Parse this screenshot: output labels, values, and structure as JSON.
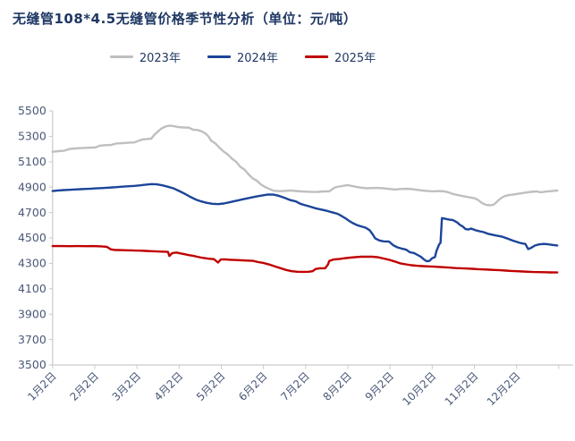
{
  "chart_data": {
    "type": "line",
    "title": "无缝管108*4.5无缝管价格季节性分析（单位：元/吨）",
    "unit": "元/吨",
    "legend_position": "top",
    "grid": false,
    "background": "#ffffff",
    "title_color": "#1f3864",
    "axis_color": "#c9c9c9",
    "tick_label_color": "#4a5878",
    "ylim": [
      3500,
      5500
    ],
    "ytick_step": 200,
    "y_tick_labels": [
      "3500",
      "3700",
      "3900",
      "4100",
      "4300",
      "4500",
      "4700",
      "4900",
      "5100",
      "5300",
      "5500"
    ],
    "x_tick_labels": [
      "1月2日",
      "2月2日",
      "3月2日",
      "4月2日",
      "5月2日",
      "6月2日",
      "7月2日",
      "8月2日",
      "9月2日",
      "10月2日",
      "11月2日",
      "12月2日"
    ],
    "x_axis_type": "day-of-year",
    "series": [
      {
        "name": "2023年",
        "color": "#bfbfbf",
        "points": [
          [
            2,
            5178
          ],
          [
            6,
            5183
          ],
          [
            10,
            5186
          ],
          [
            14,
            5200
          ],
          [
            18,
            5204
          ],
          [
            22,
            5207
          ],
          [
            26,
            5209
          ],
          [
            30,
            5211
          ],
          [
            33,
            5213
          ],
          [
            36,
            5227
          ],
          [
            40,
            5230
          ],
          [
            44,
            5232
          ],
          [
            48,
            5244
          ],
          [
            52,
            5246
          ],
          [
            56,
            5249
          ],
          [
            61,
            5252
          ],
          [
            64,
            5266
          ],
          [
            67,
            5276
          ],
          [
            70,
            5279
          ],
          [
            73,
            5282
          ],
          [
            75,
            5310
          ],
          [
            78,
            5340
          ],
          [
            80,
            5360
          ],
          [
            83,
            5377
          ],
          [
            86,
            5384
          ],
          [
            89,
            5381
          ],
          [
            92,
            5373
          ],
          [
            96,
            5370
          ],
          [
            100,
            5368
          ],
          [
            103,
            5352
          ],
          [
            106,
            5350
          ],
          [
            109,
            5340
          ],
          [
            112,
            5322
          ],
          [
            114,
            5300
          ],
          [
            116,
            5266
          ],
          [
            119,
            5245
          ],
          [
            122,
            5210
          ],
          [
            125,
            5180
          ],
          [
            128,
            5158
          ],
          [
            131,
            5124
          ],
          [
            134,
            5100
          ],
          [
            137,
            5060
          ],
          [
            140,
            5038
          ],
          [
            143,
            5000
          ],
          [
            146,
            4968
          ],
          [
            149,
            4950
          ],
          [
            152,
            4920
          ],
          [
            155,
            4900
          ],
          [
            158,
            4885
          ],
          [
            161,
            4872
          ],
          [
            165,
            4868
          ],
          [
            169,
            4870
          ],
          [
            173,
            4874
          ],
          [
            177,
            4870
          ],
          [
            181,
            4866
          ],
          [
            185,
            4864
          ],
          [
            189,
            4862
          ],
          [
            193,
            4863
          ],
          [
            197,
            4866
          ],
          [
            201,
            4867
          ],
          [
            205,
            4898
          ],
          [
            208,
            4905
          ],
          [
            211,
            4910
          ],
          [
            214,
            4916
          ],
          [
            217,
            4910
          ],
          [
            220,
            4903
          ],
          [
            224,
            4896
          ],
          [
            228,
            4891
          ],
          [
            232,
            4893
          ],
          [
            236,
            4894
          ],
          [
            240,
            4891
          ],
          [
            244,
            4886
          ],
          [
            248,
            4882
          ],
          [
            252,
            4885
          ],
          [
            256,
            4887
          ],
          [
            260,
            4885
          ],
          [
            264,
            4879
          ],
          [
            268,
            4873
          ],
          [
            272,
            4869
          ],
          [
            276,
            4867
          ],
          [
            280,
            4869
          ],
          [
            284,
            4866
          ],
          [
            287,
            4858
          ],
          [
            290,
            4846
          ],
          [
            293,
            4839
          ],
          [
            296,
            4832
          ],
          [
            299,
            4825
          ],
          [
            302,
            4819
          ],
          [
            305,
            4814
          ],
          [
            308,
            4799
          ],
          [
            310,
            4782
          ],
          [
            312,
            4768
          ],
          [
            314,
            4760
          ],
          [
            317,
            4757
          ],
          [
            319,
            4761
          ],
          [
            321,
            4779
          ],
          [
            323,
            4799
          ],
          [
            325,
            4817
          ],
          [
            327,
            4829
          ],
          [
            330,
            4837
          ],
          [
            334,
            4843
          ],
          [
            338,
            4850
          ],
          [
            342,
            4857
          ],
          [
            346,
            4863
          ],
          [
            350,
            4866
          ],
          [
            353,
            4860
          ],
          [
            356,
            4864
          ],
          [
            360,
            4868
          ],
          [
            365,
            4873
          ]
        ]
      },
      {
        "name": "2024年",
        "color": "#1c4499",
        "points": [
          [
            2,
            4869
          ],
          [
            6,
            4874
          ],
          [
            10,
            4877
          ],
          [
            14,
            4879
          ],
          [
            18,
            4882
          ],
          [
            22,
            4884
          ],
          [
            26,
            4886
          ],
          [
            30,
            4888
          ],
          [
            33,
            4890
          ],
          [
            37,
            4892
          ],
          [
            41,
            4895
          ],
          [
            45,
            4898
          ],
          [
            49,
            4901
          ],
          [
            53,
            4904
          ],
          [
            57,
            4907
          ],
          [
            61,
            4910
          ],
          [
            65,
            4914
          ],
          [
            69,
            4920
          ],
          [
            73,
            4924
          ],
          [
            77,
            4922
          ],
          [
            81,
            4914
          ],
          [
            85,
            4903
          ],
          [
            89,
            4890
          ],
          [
            93,
            4870
          ],
          [
            97,
            4848
          ],
          [
            101,
            4824
          ],
          [
            105,
            4802
          ],
          [
            109,
            4787
          ],
          [
            113,
            4776
          ],
          [
            117,
            4769
          ],
          [
            121,
            4766
          ],
          [
            125,
            4771
          ],
          [
            129,
            4780
          ],
          [
            133,
            4790
          ],
          [
            138,
            4802
          ],
          [
            143,
            4814
          ],
          [
            148,
            4825
          ],
          [
            153,
            4835
          ],
          [
            157,
            4842
          ],
          [
            161,
            4841
          ],
          [
            165,
            4830
          ],
          [
            169,
            4815
          ],
          [
            173,
            4798
          ],
          [
            177,
            4787
          ],
          [
            180,
            4770
          ],
          [
            183,
            4760
          ],
          [
            187,
            4747
          ],
          [
            191,
            4734
          ],
          [
            195,
            4724
          ],
          [
            199,
            4714
          ],
          [
            203,
            4702
          ],
          [
            207,
            4690
          ],
          [
            210,
            4672
          ],
          [
            213,
            4652
          ],
          [
            215,
            4636
          ],
          [
            218,
            4616
          ],
          [
            221,
            4601
          ],
          [
            224,
            4591
          ],
          [
            227,
            4581
          ],
          [
            230,
            4561
          ],
          [
            232,
            4532
          ],
          [
            234,
            4497
          ],
          [
            237,
            4480
          ],
          [
            240,
            4473
          ],
          [
            244,
            4471
          ],
          [
            247,
            4442
          ],
          [
            250,
            4426
          ],
          [
            253,
            4416
          ],
          [
            256,
            4409
          ],
          [
            259,
            4387
          ],
          [
            262,
            4381
          ],
          [
            265,
            4363
          ],
          [
            267,
            4351
          ],
          [
            269,
            4331
          ],
          [
            271,
            4317
          ],
          [
            273,
            4319
          ],
          [
            275,
            4341
          ],
          [
            277,
            4349
          ],
          [
            278,
            4396
          ],
          [
            280,
            4449
          ],
          [
            281,
            4461
          ],
          [
            282,
            4656
          ],
          [
            284,
            4652
          ],
          [
            287,
            4645
          ],
          [
            290,
            4640
          ],
          [
            293,
            4622
          ],
          [
            295,
            4602
          ],
          [
            297,
            4590
          ],
          [
            299,
            4570
          ],
          [
            301,
            4566
          ],
          [
            303,
            4574
          ],
          [
            306,
            4561
          ],
          [
            309,
            4553
          ],
          [
            312,
            4546
          ],
          [
            315,
            4533
          ],
          [
            318,
            4526
          ],
          [
            321,
            4519
          ],
          [
            325,
            4511
          ],
          [
            329,
            4496
          ],
          [
            333,
            4479
          ],
          [
            336,
            4468
          ],
          [
            338,
            4461
          ],
          [
            340,
            4456
          ],
          [
            342,
            4453
          ],
          [
            344,
            4413
          ],
          [
            346,
            4421
          ],
          [
            349,
            4441
          ],
          [
            352,
            4449
          ],
          [
            355,
            4453
          ],
          [
            358,
            4451
          ],
          [
            361,
            4446
          ],
          [
            363,
            4443
          ],
          [
            365,
            4441
          ]
        ]
      },
      {
        "name": "2025年",
        "color": "#c00000",
        "points": [
          [
            2,
            4436
          ],
          [
            8,
            4436
          ],
          [
            14,
            4435
          ],
          [
            20,
            4436
          ],
          [
            26,
            4435
          ],
          [
            31,
            4436
          ],
          [
            33,
            4435
          ],
          [
            37,
            4434
          ],
          [
            41,
            4430
          ],
          [
            44,
            4410
          ],
          [
            47,
            4405
          ],
          [
            51,
            4404
          ],
          [
            55,
            4403
          ],
          [
            59,
            4402
          ],
          [
            61,
            4401
          ],
          [
            65,
            4400
          ],
          [
            69,
            4398
          ],
          [
            73,
            4396
          ],
          [
            77,
            4394
          ],
          [
            81,
            4392
          ],
          [
            85,
            4390
          ],
          [
            86,
            4358
          ],
          [
            88,
            4380
          ],
          [
            91,
            4385
          ],
          [
            94,
            4378
          ],
          [
            97,
            4372
          ],
          [
            100,
            4365
          ],
          [
            103,
            4360
          ],
          [
            106,
            4352
          ],
          [
            109,
            4345
          ],
          [
            112,
            4340
          ],
          [
            115,
            4336
          ],
          [
            118,
            4333
          ],
          [
            121,
            4306
          ],
          [
            123,
            4330
          ],
          [
            126,
            4331
          ],
          [
            130,
            4328
          ],
          [
            134,
            4326
          ],
          [
            138,
            4324
          ],
          [
            142,
            4322
          ],
          [
            146,
            4320
          ],
          [
            150,
            4310
          ],
          [
            154,
            4302
          ],
          [
            158,
            4290
          ],
          [
            162,
            4275
          ],
          [
            166,
            4262
          ],
          [
            170,
            4248
          ],
          [
            174,
            4238
          ],
          [
            178,
            4234
          ],
          [
            182,
            4233
          ],
          [
            186,
            4234
          ],
          [
            189,
            4238
          ],
          [
            191,
            4255
          ],
          [
            194,
            4261
          ],
          [
            198,
            4261
          ],
          [
            200,
            4290
          ],
          [
            201,
            4318
          ],
          [
            204,
            4330
          ],
          [
            208,
            4334
          ],
          [
            212,
            4340
          ],
          [
            216,
            4345
          ],
          [
            220,
            4349
          ],
          [
            224,
            4352
          ],
          [
            228,
            4353
          ],
          [
            232,
            4352
          ],
          [
            236,
            4348
          ],
          [
            240,
            4338
          ],
          [
            244,
            4328
          ],
          [
            248,
            4315
          ],
          [
            252,
            4300
          ],
          [
            256,
            4292
          ],
          [
            260,
            4285
          ],
          [
            264,
            4281
          ],
          [
            268,
            4278
          ],
          [
            272,
            4276
          ],
          [
            276,
            4274
          ],
          [
            280,
            4272
          ],
          [
            284,
            4269
          ],
          [
            288,
            4266
          ],
          [
            292,
            4263
          ],
          [
            296,
            4261
          ],
          [
            300,
            4259
          ],
          [
            304,
            4257
          ],
          [
            308,
            4254
          ],
          [
            312,
            4252
          ],
          [
            316,
            4250
          ],
          [
            320,
            4248
          ],
          [
            324,
            4246
          ],
          [
            328,
            4243
          ],
          [
            332,
            4240
          ],
          [
            336,
            4238
          ],
          [
            340,
            4236
          ],
          [
            344,
            4234
          ],
          [
            348,
            4232
          ],
          [
            352,
            4231
          ],
          [
            356,
            4230
          ],
          [
            360,
            4229
          ],
          [
            365,
            4228
          ]
        ]
      }
    ]
  }
}
